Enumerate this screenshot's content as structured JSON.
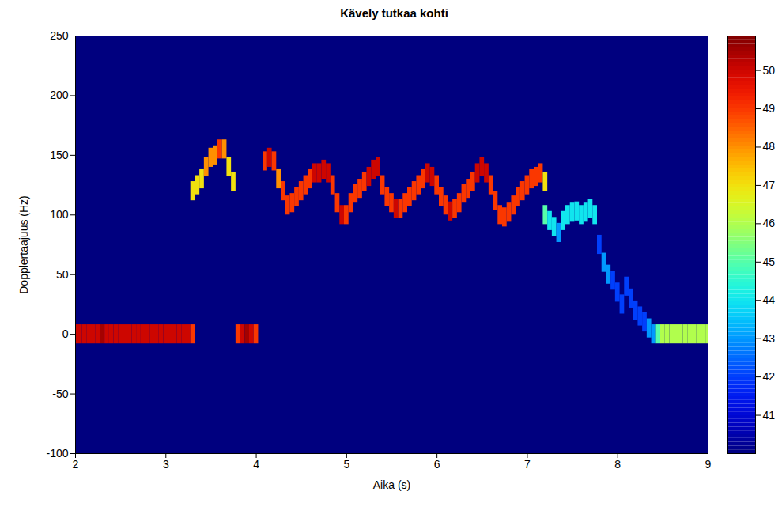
{
  "chart_data": {
    "type": "heatmap",
    "title": "Kävely tutkaa kohti",
    "xlabel": "Aika (s)",
    "ylabel": "Dopplertaajuus (Hz)",
    "xlim": [
      2,
      9
    ],
    "xticks": [
      2,
      3,
      4,
      5,
      6,
      7,
      8,
      9
    ],
    "ylim": [
      -100,
      250
    ],
    "yticks": [
      -100,
      -50,
      0,
      50,
      100,
      150,
      200,
      250
    ],
    "colorbar": {
      "range": [
        40,
        50.9
      ],
      "ticks": [
        41,
        42,
        43,
        44,
        45,
        46,
        47,
        48,
        49,
        50
      ]
    },
    "cells": [
      [
        2.0,
        0,
        50
      ],
      [
        2.05,
        0,
        50
      ],
      [
        2.1,
        0,
        50
      ],
      [
        2.15,
        0,
        50
      ],
      [
        2.2,
        0,
        50
      ],
      [
        2.25,
        0,
        50
      ],
      [
        2.3,
        0,
        50.5
      ],
      [
        2.35,
        0,
        50
      ],
      [
        2.4,
        0,
        50
      ],
      [
        2.45,
        0,
        50
      ],
      [
        2.5,
        0,
        50
      ],
      [
        2.55,
        0,
        50
      ],
      [
        2.6,
        0,
        50
      ],
      [
        2.65,
        0,
        50
      ],
      [
        2.7,
        0,
        50
      ],
      [
        2.75,
        0,
        50
      ],
      [
        2.8,
        0,
        50
      ],
      [
        2.85,
        0,
        50
      ],
      [
        2.9,
        0,
        50
      ],
      [
        2.95,
        0,
        50
      ],
      [
        3.0,
        0,
        50
      ],
      [
        3.05,
        0,
        50
      ],
      [
        3.1,
        0,
        50
      ],
      [
        3.15,
        0,
        50
      ],
      [
        3.2,
        0,
        50
      ],
      [
        3.25,
        0,
        50
      ],
      [
        3.3,
        0,
        49
      ],
      [
        3.8,
        0,
        49
      ],
      [
        3.85,
        0,
        50
      ],
      [
        3.9,
        0,
        50.5
      ],
      [
        3.95,
        0,
        50
      ],
      [
        4.0,
        0,
        49
      ],
      [
        8.45,
        0,
        45
      ],
      [
        8.5,
        0,
        46
      ],
      [
        8.55,
        0,
        46
      ],
      [
        8.6,
        0,
        46
      ],
      [
        8.65,
        0,
        46
      ],
      [
        8.7,
        0,
        46
      ],
      [
        8.75,
        0,
        46
      ],
      [
        8.8,
        0,
        46
      ],
      [
        8.85,
        0,
        46
      ],
      [
        8.9,
        0,
        46
      ],
      [
        8.95,
        0,
        46
      ],
      [
        9.0,
        0,
        46
      ],
      [
        3.3,
        120,
        47
      ],
      [
        3.35,
        125,
        47
      ],
      [
        3.4,
        130,
        47
      ],
      [
        3.45,
        140,
        48
      ],
      [
        3.5,
        148,
        48
      ],
      [
        3.55,
        150,
        48
      ],
      [
        3.6,
        155,
        49
      ],
      [
        3.65,
        155,
        48
      ],
      [
        3.7,
        140,
        47
      ],
      [
        3.75,
        128,
        47
      ],
      [
        4.1,
        145,
        49
      ],
      [
        4.15,
        148,
        50
      ],
      [
        4.2,
        145,
        49
      ],
      [
        4.25,
        130,
        48
      ],
      [
        4.3,
        120,
        49
      ],
      [
        4.35,
        108,
        49
      ],
      [
        4.4,
        110,
        49
      ],
      [
        4.45,
        115,
        49
      ],
      [
        4.5,
        120,
        49
      ],
      [
        4.55,
        125,
        49
      ],
      [
        4.6,
        130,
        49
      ],
      [
        4.65,
        135,
        50
      ],
      [
        4.7,
        135,
        50
      ],
      [
        4.75,
        138,
        50
      ],
      [
        4.8,
        135,
        50
      ],
      [
        4.85,
        125,
        49
      ],
      [
        4.9,
        110,
        49
      ],
      [
        4.95,
        100,
        50
      ],
      [
        5.0,
        100,
        49
      ],
      [
        5.05,
        110,
        49
      ],
      [
        5.1,
        118,
        49
      ],
      [
        5.15,
        122,
        49
      ],
      [
        5.2,
        128,
        49
      ],
      [
        5.25,
        132,
        50
      ],
      [
        5.3,
        138,
        50
      ],
      [
        5.35,
        140,
        50
      ],
      [
        5.4,
        125,
        49
      ],
      [
        5.45,
        115,
        49
      ],
      [
        5.5,
        110,
        49
      ],
      [
        5.55,
        105,
        50
      ],
      [
        5.6,
        105,
        49
      ],
      [
        5.65,
        110,
        49
      ],
      [
        5.7,
        115,
        49
      ],
      [
        5.75,
        120,
        49
      ],
      [
        5.8,
        125,
        49
      ],
      [
        5.85,
        130,
        49
      ],
      [
        5.9,
        135,
        50
      ],
      [
        5.95,
        132,
        50
      ],
      [
        6.0,
        125,
        49
      ],
      [
        6.05,
        115,
        49
      ],
      [
        6.1,
        108,
        49
      ],
      [
        6.15,
        103,
        50
      ],
      [
        6.2,
        105,
        49
      ],
      [
        6.25,
        110,
        49
      ],
      [
        6.3,
        118,
        49
      ],
      [
        6.35,
        122,
        49
      ],
      [
        6.4,
        128,
        49
      ],
      [
        6.45,
        135,
        50
      ],
      [
        6.5,
        140,
        50
      ],
      [
        6.55,
        135,
        50
      ],
      [
        6.6,
        125,
        49
      ],
      [
        6.65,
        112,
        49
      ],
      [
        6.7,
        100,
        49
      ],
      [
        6.75,
        98,
        49
      ],
      [
        6.8,
        102,
        49
      ],
      [
        6.85,
        108,
        49
      ],
      [
        6.9,
        115,
        49
      ],
      [
        6.95,
        120,
        49
      ],
      [
        7.0,
        125,
        49
      ],
      [
        7.05,
        130,
        49
      ],
      [
        7.1,
        132,
        49
      ],
      [
        7.15,
        135,
        49
      ],
      [
        7.2,
        128,
        47
      ],
      [
        7.2,
        100,
        45
      ],
      [
        7.25,
        95,
        44
      ],
      [
        7.3,
        90,
        44
      ],
      [
        7.35,
        85,
        43
      ],
      [
        7.4,
        95,
        44
      ],
      [
        7.45,
        100,
        44
      ],
      [
        7.5,
        102,
        44
      ],
      [
        7.55,
        103,
        44
      ],
      [
        7.6,
        100,
        44
      ],
      [
        7.65,
        102,
        44
      ],
      [
        7.7,
        105,
        44
      ],
      [
        7.75,
        100,
        44
      ],
      [
        7.8,
        75,
        42
      ],
      [
        7.85,
        60,
        43
      ],
      [
        7.9,
        50,
        43
      ],
      [
        7.95,
        45,
        42
      ],
      [
        8.0,
        35,
        42
      ],
      [
        8.05,
        25,
        42
      ],
      [
        8.1,
        40,
        42
      ],
      [
        8.15,
        30,
        42
      ],
      [
        8.2,
        20,
        42
      ],
      [
        8.25,
        15,
        42
      ],
      [
        8.3,
        10,
        42
      ],
      [
        8.35,
        5,
        43
      ],
      [
        8.4,
        0,
        43
      ]
    ]
  }
}
